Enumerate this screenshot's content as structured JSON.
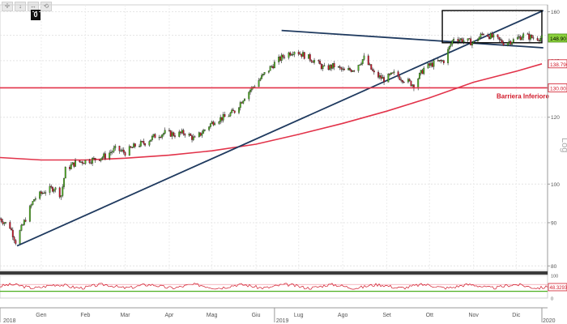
{
  "toolbar": {
    "badge": "0"
  },
  "chart_data": [
    {
      "type": "candlestick",
      "title": "",
      "yscale": "log",
      "ylabel": "Log",
      "ylim": [
        79,
        163
      ],
      "yticks": [
        80,
        90,
        100,
        120,
        130,
        140,
        150,
        160
      ],
      "xlim": [
        "2018-12-17",
        "2020-01-06"
      ],
      "year_labels": [
        {
          "date": "2018-12-17",
          "label": "2018"
        },
        {
          "date": "2019-06-28",
          "label": "2019"
        },
        {
          "date": "2020-01-02",
          "label": "2020"
        }
      ],
      "month_labels": [
        {
          "date": "2019-01-15",
          "label": "Gen"
        },
        {
          "date": "2019-02-15",
          "label": "Feb"
        },
        {
          "date": "2019-03-15",
          "label": "Mar"
        },
        {
          "date": "2019-04-15",
          "label": "Apr"
        },
        {
          "date": "2019-05-15",
          "label": "Mag"
        },
        {
          "date": "2019-06-15",
          "label": "Giu"
        },
        {
          "date": "2019-07-15",
          "label": "Lug"
        },
        {
          "date": "2019-08-15",
          "label": "Ago"
        },
        {
          "date": "2019-09-15",
          "label": "Set"
        },
        {
          "date": "2019-10-15",
          "label": "Ott"
        },
        {
          "date": "2019-11-15",
          "label": "Nov"
        },
        {
          "date": "2019-12-15",
          "label": "Dic"
        }
      ],
      "price_path": [
        [
          "2018-12-17",
          91
        ],
        [
          "2018-12-24",
          89
        ],
        [
          "2018-12-28",
          85.5
        ],
        [
          "2019-01-04",
          91
        ],
        [
          "2019-01-10",
          96
        ],
        [
          "2019-01-17",
          98
        ],
        [
          "2019-01-24",
          99
        ],
        [
          "2019-01-29",
          97
        ],
        [
          "2019-02-01",
          104
        ],
        [
          "2019-02-08",
          106
        ],
        [
          "2019-02-15",
          106.5
        ],
        [
          "2019-02-22",
          107
        ],
        [
          "2019-03-01",
          108
        ],
        [
          "2019-03-08",
          110
        ],
        [
          "2019-03-15",
          109
        ],
        [
          "2019-03-22",
          111
        ],
        [
          "2019-03-29",
          112
        ],
        [
          "2019-04-05",
          114
        ],
        [
          "2019-04-12",
          115
        ],
        [
          "2019-04-19",
          114.5
        ],
        [
          "2019-04-26",
          115
        ],
        [
          "2019-05-03",
          113
        ],
        [
          "2019-05-10",
          116
        ],
        [
          "2019-05-17",
          119
        ],
        [
          "2019-05-24",
          120
        ],
        [
          "2019-05-31",
          122
        ],
        [
          "2019-06-07",
          127
        ],
        [
          "2019-06-14",
          131
        ],
        [
          "2019-06-21",
          135
        ],
        [
          "2019-06-28",
          139
        ],
        [
          "2019-07-05",
          142
        ],
        [
          "2019-07-12",
          144
        ],
        [
          "2019-07-19",
          142
        ],
        [
          "2019-07-26",
          140
        ],
        [
          "2019-08-02",
          137
        ],
        [
          "2019-08-09",
          138
        ],
        [
          "2019-08-16",
          136
        ],
        [
          "2019-08-23",
          137
        ],
        [
          "2019-08-30",
          141
        ],
        [
          "2019-09-06",
          135
        ],
        [
          "2019-09-13",
          133
        ],
        [
          "2019-09-20",
          135
        ],
        [
          "2019-09-27",
          133
        ],
        [
          "2019-10-04",
          131
        ],
        [
          "2019-10-11",
          137
        ],
        [
          "2019-10-18",
          139
        ],
        [
          "2019-10-25",
          140
        ],
        [
          "2019-11-01",
          149
        ],
        [
          "2019-11-08",
          148
        ],
        [
          "2019-11-15",
          147
        ],
        [
          "2019-11-22",
          151
        ],
        [
          "2019-11-29",
          149
        ],
        [
          "2019-12-06",
          147
        ],
        [
          "2019-12-13",
          148
        ],
        [
          "2019-12-20",
          150
        ],
        [
          "2019-12-27",
          149
        ],
        [
          "2020-01-02",
          148.9
        ]
      ],
      "moving_average": [
        [
          "2018-12-17",
          107.5
        ],
        [
          "2019-01-15",
          106.8
        ],
        [
          "2019-02-15",
          106.8
        ],
        [
          "2019-03-15",
          107.3
        ],
        [
          "2019-04-15",
          108.2
        ],
        [
          "2019-05-15",
          109.5
        ],
        [
          "2019-06-15",
          111.5
        ],
        [
          "2019-07-15",
          114.5
        ],
        [
          "2019-08-15",
          118
        ],
        [
          "2019-09-15",
          122
        ],
        [
          "2019-10-15",
          126.5
        ],
        [
          "2019-11-15",
          132
        ],
        [
          "2019-12-15",
          136
        ],
        [
          "2020-01-02",
          138.8
        ]
      ],
      "trendlines": [
        {
          "color": "#1f3a5f",
          "points": [
            [
              "2018-12-29",
              84.5
            ],
            [
              "2020-01-03",
              160.5
            ]
          ]
        },
        {
          "color": "#1f3a5f",
          "points": [
            [
              "2019-07-03",
              152
            ],
            [
              "2020-01-03",
              145
            ]
          ]
        }
      ],
      "rectangle": {
        "x": [
          "2019-10-24",
          "2020-01-02"
        ],
        "y": [
          147,
          160.5
        ]
      },
      "support_level": {
        "value": 130,
        "label": "Barriera Inferiore"
      },
      "price_tags": [
        {
          "value": 148.9,
          "label": "148.90"
        },
        {
          "value": 138.7968,
          "label": "138.7968"
        },
        {
          "value": 130,
          "label": "130.00"
        }
      ],
      "oscillator": {
        "ylim": [
          0,
          100
        ],
        "yticks": [
          0,
          50,
          100
        ],
        "current": {
          "value": 48.3293,
          "label": "48.3293"
        }
      }
    }
  ]
}
